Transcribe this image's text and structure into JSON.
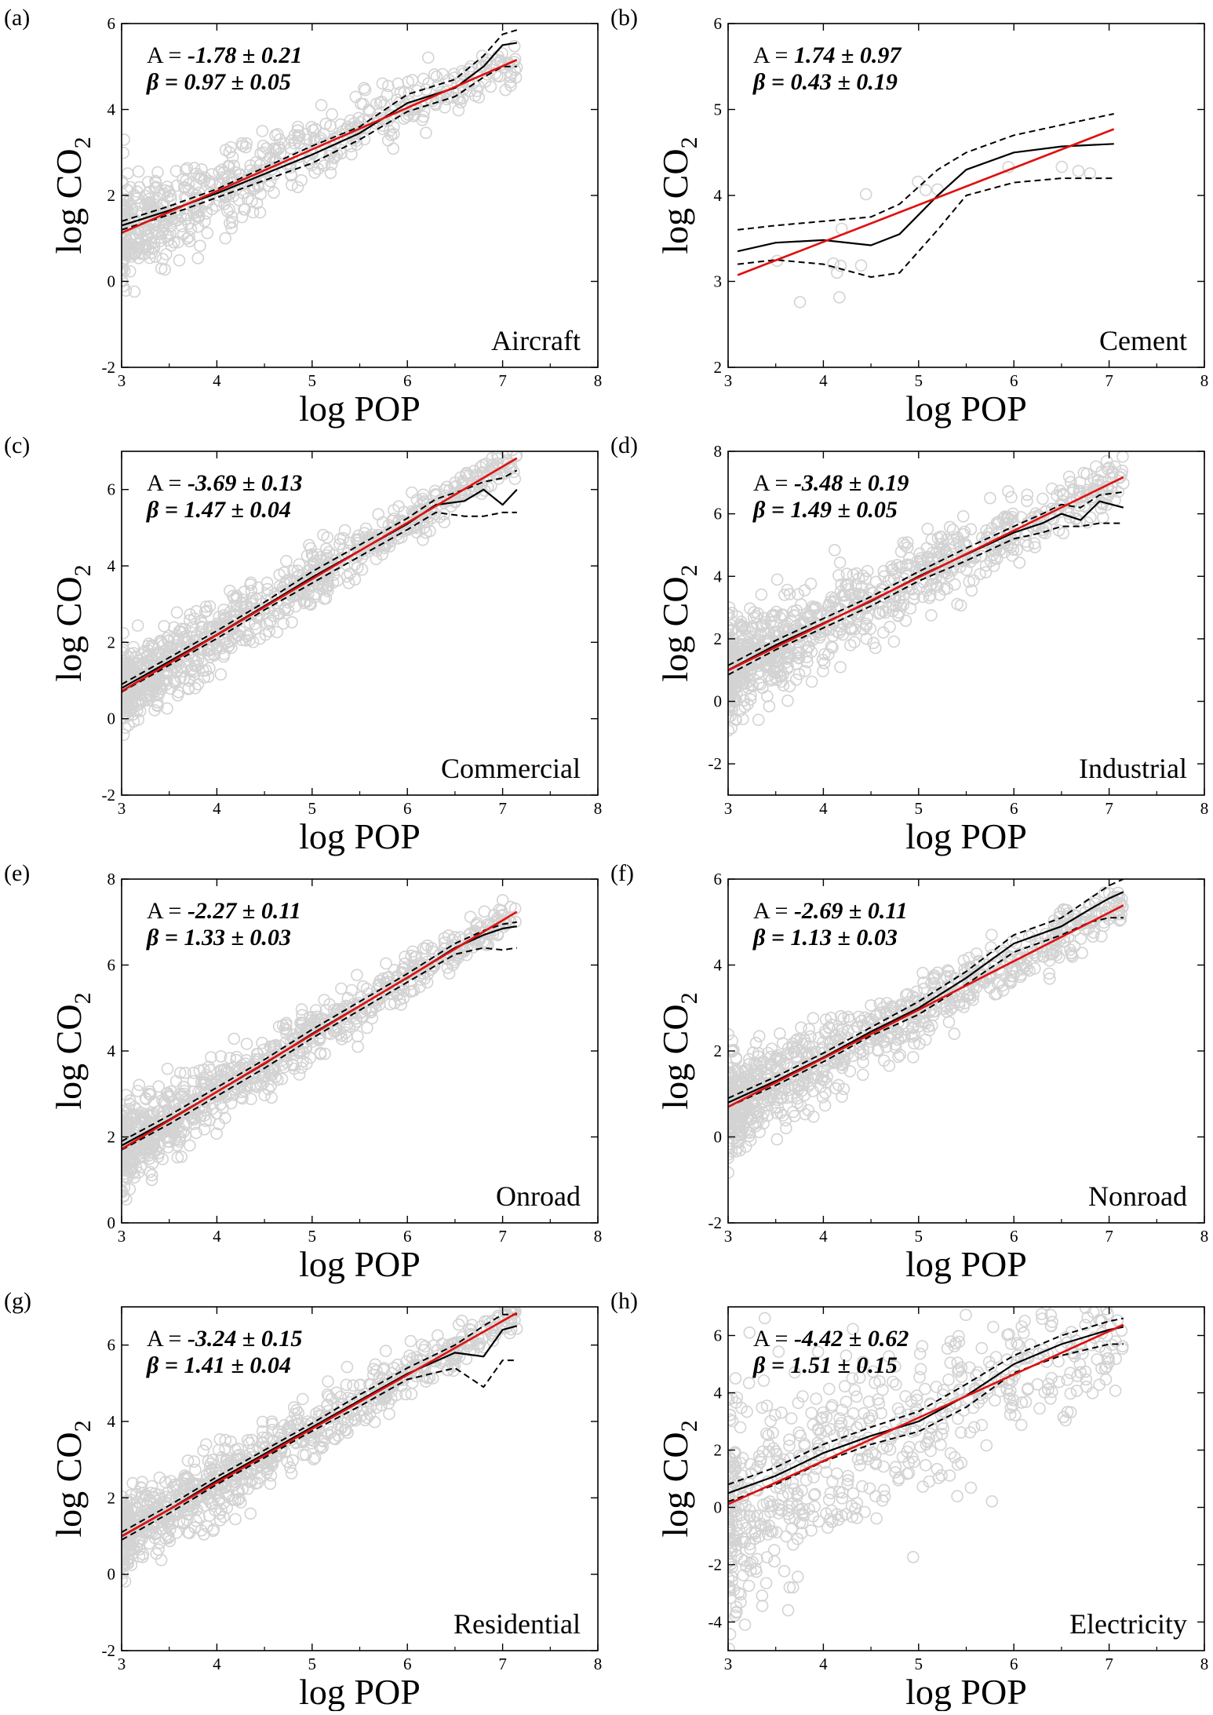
{
  "figure": {
    "xlabel": "log POP",
    "ylabel_main": "log CO",
    "ylabel_sub": "2",
    "A_prefix": "A = ",
    "beta_prefix": "β = "
  },
  "chart_data": [
    {
      "type": "scatter",
      "panel": "(a)",
      "category": "Aircraft",
      "A": "-1.78 ± 0.21",
      "beta": "0.97 ± 0.05",
      "xlim": [
        3,
        8
      ],
      "ylim": [
        -2,
        6
      ],
      "xticks": [
        3,
        4,
        5,
        6,
        7,
        8
      ],
      "yticks": [
        -2,
        0,
        2,
        4,
        6
      ],
      "fit": {
        "intercept": -1.78,
        "slope": 0.97,
        "x_range": [
          3,
          7.15
        ]
      },
      "nadaraya_watson": {
        "x": [
          3.0,
          3.5,
          4.0,
          4.5,
          5.0,
          5.5,
          6.0,
          6.5,
          6.8,
          7.0,
          7.15
        ],
        "y": [
          1.3,
          1.65,
          2.05,
          2.5,
          2.95,
          3.45,
          4.15,
          4.5,
          5.0,
          5.5,
          5.55
        ]
      },
      "band_upper": {
        "x": [
          3.0,
          3.5,
          4.0,
          4.5,
          5.0,
          5.5,
          6.0,
          6.5,
          6.8,
          7.0,
          7.15
        ],
        "y": [
          1.4,
          1.75,
          2.15,
          2.65,
          3.15,
          3.6,
          4.35,
          4.7,
          5.25,
          5.75,
          5.85
        ]
      },
      "band_lower": {
        "x": [
          3.0,
          3.5,
          4.0,
          4.5,
          5.0,
          5.5,
          6.0,
          6.5,
          6.8,
          7.0,
          7.15
        ],
        "y": [
          1.2,
          1.55,
          1.95,
          2.35,
          2.75,
          3.3,
          3.95,
          4.3,
          4.75,
          5.0,
          5.0
        ]
      },
      "scatter": {
        "n": 650,
        "x_range": [
          3.0,
          7.15
        ],
        "spread": 0.55,
        "seed": 11
      }
    },
    {
      "type": "scatter",
      "panel": "(b)",
      "category": "Cement",
      "A": "1.74 ± 0.97",
      "beta": "0.43 ± 0.19",
      "xlim": [
        3,
        8
      ],
      "ylim": [
        2,
        6
      ],
      "xticks": [
        3,
        4,
        5,
        6,
        7,
        8
      ],
      "yticks": [
        2,
        3,
        4,
        5,
        6
      ],
      "fit": {
        "intercept": 1.74,
        "slope": 0.43,
        "x_range": [
          3.1,
          7.05
        ]
      },
      "nadaraya_watson": {
        "x": [
          3.1,
          3.5,
          4.0,
          4.5,
          4.8,
          5.2,
          5.5,
          6.0,
          6.5,
          7.05
        ],
        "y": [
          3.35,
          3.45,
          3.48,
          3.42,
          3.55,
          4.0,
          4.3,
          4.5,
          4.57,
          4.6
        ]
      },
      "band_upper": {
        "x": [
          3.1,
          3.5,
          4.0,
          4.5,
          4.8,
          5.2,
          5.5,
          6.0,
          6.5,
          7.05
        ],
        "y": [
          3.6,
          3.65,
          3.7,
          3.75,
          3.9,
          4.3,
          4.5,
          4.7,
          4.82,
          4.95
        ]
      },
      "band_lower": {
        "x": [
          3.1,
          3.5,
          4.0,
          4.5,
          4.8,
          5.2,
          5.5,
          6.0,
          6.5,
          7.05
        ],
        "y": [
          3.2,
          3.25,
          3.2,
          3.05,
          3.1,
          3.6,
          4.0,
          4.15,
          4.2,
          4.2
        ]
      },
      "scatter": {
        "n": 16,
        "x_range": [
          3.2,
          7.05
        ],
        "spread": 0.35,
        "seed": 23
      }
    },
    {
      "type": "scatter",
      "panel": "(c)",
      "category": "Commercial",
      "A": "-3.69 ± 0.13",
      "beta": "1.47 ± 0.04",
      "xlim": [
        3,
        8
      ],
      "ylim": [
        -2,
        7
      ],
      "xticks": [
        3,
        4,
        5,
        6,
        7,
        8
      ],
      "yticks": [
        -2,
        0,
        2,
        4,
        6
      ],
      "fit": {
        "intercept": -3.69,
        "slope": 1.47,
        "x_range": [
          3,
          7.15
        ]
      },
      "nadaraya_watson": {
        "x": [
          3.0,
          3.5,
          4.0,
          4.5,
          5.0,
          5.5,
          6.0,
          6.3,
          6.6,
          6.8,
          7.0,
          7.15
        ],
        "y": [
          0.8,
          1.5,
          2.2,
          2.95,
          3.7,
          4.4,
          5.1,
          5.6,
          5.7,
          6.0,
          5.6,
          6.0
        ]
      },
      "band_upper": {
        "x": [
          3.0,
          3.5,
          4.0,
          4.5,
          5.0,
          5.5,
          6.0,
          6.3,
          6.6,
          6.8,
          7.0,
          7.15
        ],
        "y": [
          0.9,
          1.6,
          2.3,
          3.05,
          3.85,
          4.55,
          5.25,
          5.75,
          6.0,
          6.2,
          6.3,
          6.5
        ]
      },
      "band_lower": {
        "x": [
          3.0,
          3.5,
          4.0,
          4.5,
          5.0,
          5.5,
          6.0,
          6.3,
          6.6,
          6.8,
          7.0,
          7.15
        ],
        "y": [
          0.7,
          1.4,
          2.1,
          2.85,
          3.55,
          4.25,
          4.95,
          5.4,
          5.3,
          5.3,
          5.4,
          5.4
        ]
      },
      "scatter": {
        "n": 900,
        "x_range": [
          3.0,
          7.15
        ],
        "spread": 0.45,
        "seed": 37
      }
    },
    {
      "type": "scatter",
      "panel": "(d)",
      "category": "Industrial",
      "A": "-3.48 ± 0.19",
      "beta": "1.49 ± 0.05",
      "xlim": [
        3,
        8
      ],
      "ylim": [
        -3,
        8
      ],
      "xticks": [
        3,
        4,
        5,
        6,
        7,
        8
      ],
      "yticks": [
        -2,
        0,
        2,
        4,
        6,
        8
      ],
      "fit": {
        "intercept": -3.48,
        "slope": 1.49,
        "x_range": [
          3,
          7.15
        ]
      },
      "nadaraya_watson": {
        "x": [
          3.0,
          3.5,
          4.0,
          4.5,
          5.0,
          5.5,
          6.0,
          6.3,
          6.5,
          6.7,
          6.9,
          7.15
        ],
        "y": [
          1.0,
          1.8,
          2.5,
          3.2,
          4.0,
          4.7,
          5.4,
          5.7,
          6.0,
          5.8,
          6.4,
          6.2
        ]
      },
      "band_upper": {
        "x": [
          3.0,
          3.5,
          4.0,
          4.5,
          5.0,
          5.5,
          6.0,
          6.3,
          6.5,
          6.7,
          6.9,
          7.15
        ],
        "y": [
          1.15,
          1.95,
          2.65,
          3.35,
          4.15,
          4.9,
          5.6,
          6.0,
          6.3,
          6.2,
          6.6,
          6.7
        ]
      },
      "band_lower": {
        "x": [
          3.0,
          3.5,
          4.0,
          4.5,
          5.0,
          5.5,
          6.0,
          6.3,
          6.5,
          6.7,
          6.9,
          7.15
        ],
        "y": [
          0.85,
          1.65,
          2.35,
          3.05,
          3.85,
          4.5,
          5.2,
          5.4,
          5.6,
          5.6,
          5.7,
          5.7
        ]
      },
      "scatter": {
        "n": 900,
        "x_range": [
          3.0,
          7.15
        ],
        "spread": 0.75,
        "seed": 53
      }
    },
    {
      "type": "scatter",
      "panel": "(e)",
      "category": "Onroad",
      "A": "-2.27 ± 0.11",
      "beta": "1.33 ± 0.03",
      "xlim": [
        3,
        8
      ],
      "ylim": [
        0,
        8
      ],
      "xticks": [
        3,
        4,
        5,
        6,
        7,
        8
      ],
      "yticks": [
        0,
        2,
        4,
        6,
        8
      ],
      "fit": {
        "intercept": -2.27,
        "slope": 1.33,
        "x_range": [
          3,
          7.15
        ]
      },
      "nadaraya_watson": {
        "x": [
          3.0,
          3.5,
          4.0,
          4.5,
          5.0,
          5.5,
          6.0,
          6.5,
          6.8,
          7.0,
          7.15
        ],
        "y": [
          1.8,
          2.4,
          3.05,
          3.7,
          4.4,
          5.05,
          5.7,
          6.4,
          6.7,
          6.85,
          6.9
        ]
      },
      "band_upper": {
        "x": [
          3.0,
          3.5,
          4.0,
          4.5,
          5.0,
          5.5,
          6.0,
          6.5,
          6.8,
          7.0,
          7.15
        ],
        "y": [
          1.9,
          2.5,
          3.15,
          3.8,
          4.5,
          5.15,
          5.8,
          6.5,
          6.8,
          6.95,
          7.0
        ]
      },
      "band_lower": {
        "x": [
          3.0,
          3.5,
          4.0,
          4.5,
          5.0,
          5.5,
          6.0,
          6.5,
          6.8,
          7.0,
          7.15
        ],
        "y": [
          1.7,
          2.3,
          2.95,
          3.6,
          4.3,
          4.95,
          5.6,
          6.25,
          6.4,
          6.35,
          6.4
        ]
      },
      "scatter": {
        "n": 900,
        "x_range": [
          3.0,
          7.15
        ],
        "spread": 0.4,
        "seed": 71
      }
    },
    {
      "type": "scatter",
      "panel": "(f)",
      "category": "Nonroad",
      "A": "-2.69 ± 0.11",
      "beta": "1.13 ± 0.03",
      "xlim": [
        3,
        8
      ],
      "ylim": [
        -2,
        6
      ],
      "xticks": [
        3,
        4,
        5,
        6,
        7,
        8
      ],
      "yticks": [
        -2,
        0,
        2,
        4,
        6
      ],
      "fit": {
        "intercept": -2.69,
        "slope": 1.13,
        "x_range": [
          3,
          7.15
        ]
      },
      "nadaraya_watson": {
        "x": [
          3.0,
          3.5,
          4.0,
          4.5,
          5.0,
          5.5,
          6.0,
          6.5,
          6.8,
          7.0,
          7.15
        ],
        "y": [
          0.8,
          1.3,
          1.85,
          2.45,
          3.0,
          3.7,
          4.5,
          4.9,
          5.3,
          5.55,
          5.7
        ]
      },
      "band_upper": {
        "x": [
          3.0,
          3.5,
          4.0,
          4.5,
          5.0,
          5.5,
          6.0,
          6.5,
          6.8,
          7.0,
          7.15
        ],
        "y": [
          0.9,
          1.4,
          1.95,
          2.55,
          3.15,
          3.85,
          4.7,
          5.1,
          5.55,
          5.85,
          6.0
        ]
      },
      "band_lower": {
        "x": [
          3.0,
          3.5,
          4.0,
          4.5,
          5.0,
          5.5,
          6.0,
          6.5,
          6.8,
          7.0,
          7.15
        ],
        "y": [
          0.7,
          1.2,
          1.75,
          2.35,
          2.85,
          3.55,
          4.3,
          4.7,
          5.0,
          5.1,
          5.1
        ]
      },
      "scatter": {
        "n": 900,
        "x_range": [
          3.0,
          7.15
        ],
        "spread": 0.5,
        "seed": 97
      }
    },
    {
      "type": "scatter",
      "panel": "(g)",
      "category": "Residential",
      "A": "-3.24 ± 0.15",
      "beta": "1.41 ± 0.04",
      "xlim": [
        3,
        8
      ],
      "ylim": [
        -2,
        7
      ],
      "xticks": [
        3,
        4,
        5,
        6,
        7,
        8
      ],
      "yticks": [
        -2,
        0,
        2,
        4,
        6
      ],
      "fit": {
        "intercept": -3.24,
        "slope": 1.41,
        "x_range": [
          3,
          7.15
        ]
      },
      "nadaraya_watson": {
        "x": [
          3.0,
          3.5,
          4.0,
          4.5,
          5.0,
          5.5,
          6.0,
          6.5,
          6.8,
          7.0,
          7.15
        ],
        "y": [
          1.0,
          1.7,
          2.45,
          3.15,
          3.85,
          4.55,
          5.25,
          5.8,
          5.7,
          6.4,
          6.5
        ]
      },
      "band_upper": {
        "x": [
          3.0,
          3.5,
          4.0,
          4.5,
          5.0,
          5.5,
          6.0,
          6.5,
          6.8,
          7.0,
          7.15
        ],
        "y": [
          1.1,
          1.8,
          2.55,
          3.25,
          3.95,
          4.7,
          5.4,
          6.0,
          6.5,
          6.8,
          6.8
        ]
      },
      "band_lower": {
        "x": [
          3.0,
          3.5,
          4.0,
          4.5,
          5.0,
          5.5,
          6.0,
          6.5,
          6.8,
          7.0,
          7.15
        ],
        "y": [
          0.9,
          1.6,
          2.35,
          3.05,
          3.75,
          4.4,
          5.1,
          5.4,
          4.9,
          5.6,
          5.6
        ]
      },
      "scatter": {
        "n": 900,
        "x_range": [
          3.0,
          7.15
        ],
        "spread": 0.45,
        "seed": 131
      }
    },
    {
      "type": "scatter",
      "panel": "(h)",
      "category": "Electricity",
      "A": "-4.42 ± 0.62",
      "beta": "1.51 ± 0.15",
      "xlim": [
        3,
        8
      ],
      "ylim": [
        -5,
        7
      ],
      "xticks": [
        3,
        4,
        5,
        6,
        7,
        8
      ],
      "yticks": [
        -4,
        -2,
        0,
        2,
        4,
        6
      ],
      "fit": {
        "intercept": -4.42,
        "slope": 1.51,
        "x_range": [
          3,
          7.15
        ]
      },
      "nadaraya_watson": {
        "x": [
          3.0,
          3.5,
          4.0,
          4.5,
          5.0,
          5.5,
          6.0,
          6.5,
          7.0,
          7.15
        ],
        "y": [
          0.5,
          1.1,
          1.9,
          2.5,
          3.0,
          3.9,
          5.0,
          5.7,
          6.2,
          6.3
        ]
      },
      "band_upper": {
        "x": [
          3.0,
          3.5,
          4.0,
          4.5,
          5.0,
          5.5,
          6.0,
          6.5,
          7.0,
          7.15
        ],
        "y": [
          0.8,
          1.4,
          2.2,
          2.8,
          3.35,
          4.3,
          5.3,
          6.0,
          6.5,
          6.6
        ]
      },
      "band_lower": {
        "x": [
          3.0,
          3.5,
          4.0,
          4.5,
          5.0,
          5.5,
          6.0,
          6.5,
          7.0,
          7.15
        ],
        "y": [
          0.2,
          0.8,
          1.6,
          2.2,
          2.65,
          3.5,
          4.7,
          5.3,
          5.7,
          5.7
        ]
      },
      "scatter": {
        "n": 650,
        "x_range": [
          3.0,
          7.15
        ],
        "spread": 1.7,
        "seed": 151
      }
    }
  ]
}
